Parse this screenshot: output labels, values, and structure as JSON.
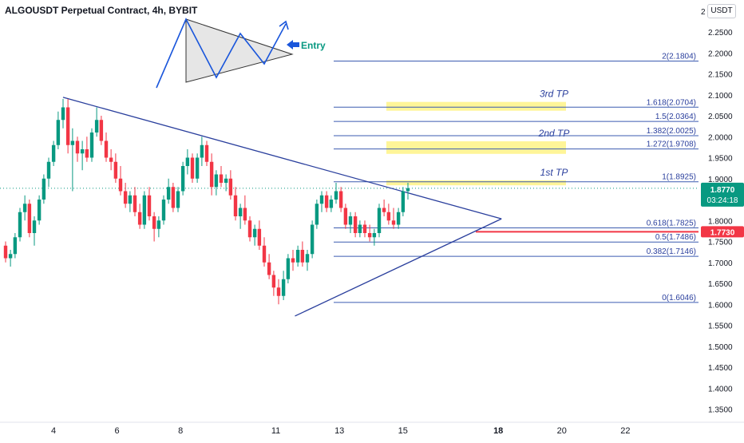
{
  "header": {
    "title": "ALGOUSDT Perpetual Contract, 4h, BYBIT",
    "unit": "USDT"
  },
  "colors": {
    "up": "#089981",
    "down": "#f23645",
    "line": "#2a3f9d",
    "fib_line": "#3b5bb0",
    "tp_zone": "#fff176",
    "price_label": "#089981",
    "level_label": "#f23645",
    "entry_arrow": "#1a56db",
    "entry_text": "#089981"
  },
  "chart_data": {
    "type": "candlestick",
    "y_ticks": [
      "2.2500",
      "2.2000",
      "2.1500",
      "2.1000",
      "2.0500",
      "2.0000",
      "1.9500",
      "1.9000",
      "1.8500",
      "1.8000",
      "1.7500",
      "1.7000",
      "1.6500",
      "1.6000",
      "1.5500",
      "1.5000",
      "1.4500",
      "1.4000",
      "1.3500"
    ],
    "y_top_label": "2",
    "ylim": [
      1.33,
      2.27
    ],
    "x_ticks": [
      {
        "label": "4",
        "day": 4
      },
      {
        "label": "6",
        "day": 6
      },
      {
        "label": "8",
        "day": 8
      },
      {
        "label": "11",
        "day": 11
      },
      {
        "label": "13",
        "day": 13
      },
      {
        "label": "15",
        "day": 15
      },
      {
        "label": "18",
        "day": 18,
        "bold": true
      },
      {
        "label": "20",
        "day": 20
      },
      {
        "label": "22",
        "day": 22
      }
    ],
    "current_price": {
      "value": 1.877,
      "label": "1.8770",
      "countdown": "03:24:18"
    },
    "level_marker": {
      "value": 1.773,
      "label": "1.7730"
    },
    "fib_levels": [
      {
        "label": "2(2.1804)",
        "value": 2.1804
      },
      {
        "label": "1.618(2.0704)",
        "value": 2.0704
      },
      {
        "label": "1.5(2.0364)",
        "value": 2.0364
      },
      {
        "label": "1.382(2.0025)",
        "value": 2.0025
      },
      {
        "label": "1.272(1.9708)",
        "value": 1.9708
      },
      {
        "label": "1(1.8925)",
        "value": 1.8925
      },
      {
        "label": "0.618(1.7825)",
        "value": 1.7825
      },
      {
        "label": "0.5(1.7486)",
        "value": 1.7486
      },
      {
        "label": "0.382(1.7146)",
        "value": 1.7146
      },
      {
        "label": "0(1.6046)",
        "value": 1.6046
      }
    ],
    "tp_zones": [
      {
        "label": "3rd TP",
        "from": 2.062,
        "to": 2.083
      },
      {
        "label": "2nd TP",
        "from": 1.959,
        "to": 1.989
      },
      {
        "label": "1st TP",
        "from": 1.884,
        "to": 1.896
      }
    ],
    "triangle_lines": [
      {
        "from": {
          "day": 4.3,
          "price": 2.094
        },
        "to": {
          "day": 18.1,
          "price": 1.804
        }
      },
      {
        "from": {
          "day": 11.6,
          "price": 1.572
        },
        "to": {
          "day": 18.1,
          "price": 1.804
        }
      }
    ],
    "entry_label": "Entry",
    "candles": [
      {
        "t": 0,
        "o": 1.74,
        "h": 1.75,
        "l": 1.7,
        "c": 1.71
      },
      {
        "t": 0.17,
        "o": 1.71,
        "h": 1.73,
        "l": 1.69,
        "c": 1.72
      },
      {
        "t": 0.33,
        "o": 1.72,
        "h": 1.77,
        "l": 1.71,
        "c": 1.76
      },
      {
        "t": 0.5,
        "o": 1.76,
        "h": 1.83,
        "l": 1.75,
        "c": 1.82
      },
      {
        "t": 0.67,
        "o": 1.82,
        "h": 1.86,
        "l": 1.8,
        "c": 1.84
      },
      {
        "t": 0.83,
        "o": 1.84,
        "h": 1.85,
        "l": 1.76,
        "c": 1.77
      },
      {
        "t": 1,
        "o": 1.77,
        "h": 1.81,
        "l": 1.74,
        "c": 1.8
      },
      {
        "t": 1.17,
        "o": 1.8,
        "h": 1.86,
        "l": 1.79,
        "c": 1.85
      },
      {
        "t": 1.33,
        "o": 1.85,
        "h": 1.91,
        "l": 1.84,
        "c": 1.9
      },
      {
        "t": 1.5,
        "o": 1.9,
        "h": 1.95,
        "l": 1.88,
        "c": 1.94
      },
      {
        "t": 1.67,
        "o": 1.94,
        "h": 1.99,
        "l": 1.93,
        "c": 1.98
      },
      {
        "t": 1.83,
        "o": 1.98,
        "h": 2.06,
        "l": 1.97,
        "c": 2.04
      },
      {
        "t": 2,
        "o": 2.04,
        "h": 2.09,
        "l": 2.02,
        "c": 2.07
      },
      {
        "t": 2.17,
        "o": 2.07,
        "h": 2.09,
        "l": 1.96,
        "c": 1.98
      },
      {
        "t": 2.33,
        "o": 1.98,
        "h": 2.02,
        "l": 1.87,
        "c": 1.99
      },
      {
        "t": 2.5,
        "o": 1.99,
        "h": 2.0,
        "l": 1.94,
        "c": 1.96
      },
      {
        "t": 2.67,
        "o": 1.96,
        "h": 1.99,
        "l": 1.92,
        "c": 1.97
      },
      {
        "t": 2.83,
        "o": 1.97,
        "h": 2.0,
        "l": 1.94,
        "c": 1.95
      },
      {
        "t": 3,
        "o": 1.95,
        "h": 2.02,
        "l": 1.94,
        "c": 2.01
      },
      {
        "t": 3.17,
        "o": 2.01,
        "h": 2.07,
        "l": 2.0,
        "c": 2.04
      },
      {
        "t": 3.33,
        "o": 2.04,
        "h": 2.05,
        "l": 1.98,
        "c": 1.99
      },
      {
        "t": 3.5,
        "o": 1.99,
        "h": 2.01,
        "l": 1.94,
        "c": 1.95
      },
      {
        "t": 3.67,
        "o": 1.95,
        "h": 1.97,
        "l": 1.92,
        "c": 1.94
      },
      {
        "t": 3.83,
        "o": 1.94,
        "h": 1.96,
        "l": 1.89,
        "c": 1.9
      },
      {
        "t": 4,
        "o": 1.9,
        "h": 1.93,
        "l": 1.86,
        "c": 1.87
      },
      {
        "t": 4.17,
        "o": 1.87,
        "h": 1.89,
        "l": 1.83,
        "c": 1.84
      },
      {
        "t": 4.33,
        "o": 1.84,
        "h": 1.87,
        "l": 1.82,
        "c": 1.86
      },
      {
        "t": 4.5,
        "o": 1.86,
        "h": 1.88,
        "l": 1.81,
        "c": 1.82
      },
      {
        "t": 4.67,
        "o": 1.82,
        "h": 1.84,
        "l": 1.78,
        "c": 1.79
      },
      {
        "t": 4.83,
        "o": 1.79,
        "h": 1.87,
        "l": 1.78,
        "c": 1.86
      },
      {
        "t": 5,
        "o": 1.86,
        "h": 1.88,
        "l": 1.8,
        "c": 1.81
      },
      {
        "t": 5.17,
        "o": 1.81,
        "h": 1.82,
        "l": 1.75,
        "c": 1.78
      },
      {
        "t": 5.33,
        "o": 1.78,
        "h": 1.81,
        "l": 1.76,
        "c": 1.8
      },
      {
        "t": 5.5,
        "o": 1.8,
        "h": 1.86,
        "l": 1.79,
        "c": 1.85
      },
      {
        "t": 5.67,
        "o": 1.85,
        "h": 1.9,
        "l": 1.84,
        "c": 1.88
      },
      {
        "t": 5.83,
        "o": 1.88,
        "h": 1.89,
        "l": 1.82,
        "c": 1.83
      },
      {
        "t": 6,
        "o": 1.83,
        "h": 1.88,
        "l": 1.82,
        "c": 1.87
      },
      {
        "t": 6.17,
        "o": 1.87,
        "h": 1.94,
        "l": 1.86,
        "c": 1.93
      },
      {
        "t": 6.33,
        "o": 1.93,
        "h": 1.97,
        "l": 1.91,
        "c": 1.95
      },
      {
        "t": 6.5,
        "o": 1.95,
        "h": 1.96,
        "l": 1.89,
        "c": 1.9
      },
      {
        "t": 6.67,
        "o": 1.9,
        "h": 1.96,
        "l": 1.89,
        "c": 1.95
      },
      {
        "t": 6.83,
        "o": 1.95,
        "h": 2.0,
        "l": 1.93,
        "c": 1.98
      },
      {
        "t": 7,
        "o": 1.98,
        "h": 1.99,
        "l": 1.93,
        "c": 1.94
      },
      {
        "t": 7.17,
        "o": 1.94,
        "h": 1.96,
        "l": 1.86,
        "c": 1.88
      },
      {
        "t": 7.33,
        "o": 1.88,
        "h": 1.92,
        "l": 1.86,
        "c": 1.91
      },
      {
        "t": 7.5,
        "o": 1.91,
        "h": 1.93,
        "l": 1.88,
        "c": 1.89
      },
      {
        "t": 7.67,
        "o": 1.89,
        "h": 1.91,
        "l": 1.87,
        "c": 1.9
      },
      {
        "t": 7.83,
        "o": 1.9,
        "h": 1.92,
        "l": 1.85,
        "c": 1.86
      },
      {
        "t": 8,
        "o": 1.86,
        "h": 1.88,
        "l": 1.8,
        "c": 1.81
      },
      {
        "t": 8.17,
        "o": 1.81,
        "h": 1.84,
        "l": 1.78,
        "c": 1.83
      },
      {
        "t": 8.33,
        "o": 1.83,
        "h": 1.86,
        "l": 1.79,
        "c": 1.8
      },
      {
        "t": 8.5,
        "o": 1.8,
        "h": 1.81,
        "l": 1.75,
        "c": 1.76
      },
      {
        "t": 8.67,
        "o": 1.76,
        "h": 1.79,
        "l": 1.74,
        "c": 1.78
      },
      {
        "t": 8.83,
        "o": 1.78,
        "h": 1.8,
        "l": 1.73,
        "c": 1.74
      },
      {
        "t": 9,
        "o": 1.74,
        "h": 1.76,
        "l": 1.69,
        "c": 1.7
      },
      {
        "t": 9.17,
        "o": 1.7,
        "h": 1.72,
        "l": 1.66,
        "c": 1.67
      },
      {
        "t": 9.33,
        "o": 1.67,
        "h": 1.68,
        "l": 1.62,
        "c": 1.64
      },
      {
        "t": 9.5,
        "o": 1.64,
        "h": 1.66,
        "l": 1.6,
        "c": 1.62
      },
      {
        "t": 9.67,
        "o": 1.62,
        "h": 1.68,
        "l": 1.61,
        "c": 1.66
      },
      {
        "t": 9.83,
        "o": 1.66,
        "h": 1.72,
        "l": 1.65,
        "c": 1.71
      },
      {
        "t": 10,
        "o": 1.71,
        "h": 1.73,
        "l": 1.68,
        "c": 1.7
      },
      {
        "t": 10.17,
        "o": 1.7,
        "h": 1.74,
        "l": 1.69,
        "c": 1.73
      },
      {
        "t": 10.33,
        "o": 1.73,
        "h": 1.75,
        "l": 1.69,
        "c": 1.7
      },
      {
        "t": 10.5,
        "o": 1.7,
        "h": 1.73,
        "l": 1.68,
        "c": 1.72
      },
      {
        "t": 10.67,
        "o": 1.72,
        "h": 1.8,
        "l": 1.71,
        "c": 1.79
      },
      {
        "t": 10.83,
        "o": 1.79,
        "h": 1.85,
        "l": 1.78,
        "c": 1.84
      },
      {
        "t": 11,
        "o": 1.84,
        "h": 1.87,
        "l": 1.82,
        "c": 1.86
      },
      {
        "t": 11.17,
        "o": 1.86,
        "h": 1.87,
        "l": 1.82,
        "c": 1.83
      },
      {
        "t": 11.33,
        "o": 1.83,
        "h": 1.86,
        "l": 1.82,
        "c": 1.85
      },
      {
        "t": 11.5,
        "o": 1.85,
        "h": 1.89,
        "l": 1.84,
        "c": 1.87
      },
      {
        "t": 11.67,
        "o": 1.87,
        "h": 1.88,
        "l": 1.82,
        "c": 1.83
      },
      {
        "t": 11.83,
        "o": 1.83,
        "h": 1.84,
        "l": 1.78,
        "c": 1.79
      },
      {
        "t": 12,
        "o": 1.79,
        "h": 1.82,
        "l": 1.77,
        "c": 1.81
      },
      {
        "t": 12.17,
        "o": 1.81,
        "h": 1.82,
        "l": 1.76,
        "c": 1.77
      },
      {
        "t": 12.33,
        "o": 1.77,
        "h": 1.8,
        "l": 1.76,
        "c": 1.79
      },
      {
        "t": 12.5,
        "o": 1.79,
        "h": 1.8,
        "l": 1.76,
        "c": 1.77
      },
      {
        "t": 12.67,
        "o": 1.77,
        "h": 1.79,
        "l": 1.75,
        "c": 1.76
      },
      {
        "t": 12.83,
        "o": 1.76,
        "h": 1.78,
        "l": 1.74,
        "c": 1.77
      },
      {
        "t": 13,
        "o": 1.77,
        "h": 1.84,
        "l": 1.76,
        "c": 1.83
      },
      {
        "t": 13.17,
        "o": 1.83,
        "h": 1.85,
        "l": 1.81,
        "c": 1.82
      },
      {
        "t": 13.33,
        "o": 1.82,
        "h": 1.84,
        "l": 1.79,
        "c": 1.8
      },
      {
        "t": 13.5,
        "o": 1.8,
        "h": 1.83,
        "l": 1.78,
        "c": 1.79
      },
      {
        "t": 13.67,
        "o": 1.79,
        "h": 1.83,
        "l": 1.78,
        "c": 1.82
      },
      {
        "t": 13.83,
        "o": 1.82,
        "h": 1.88,
        "l": 1.81,
        "c": 1.87
      },
      {
        "t": 14,
        "o": 1.87,
        "h": 1.89,
        "l": 1.85,
        "c": 1.877
      }
    ]
  }
}
